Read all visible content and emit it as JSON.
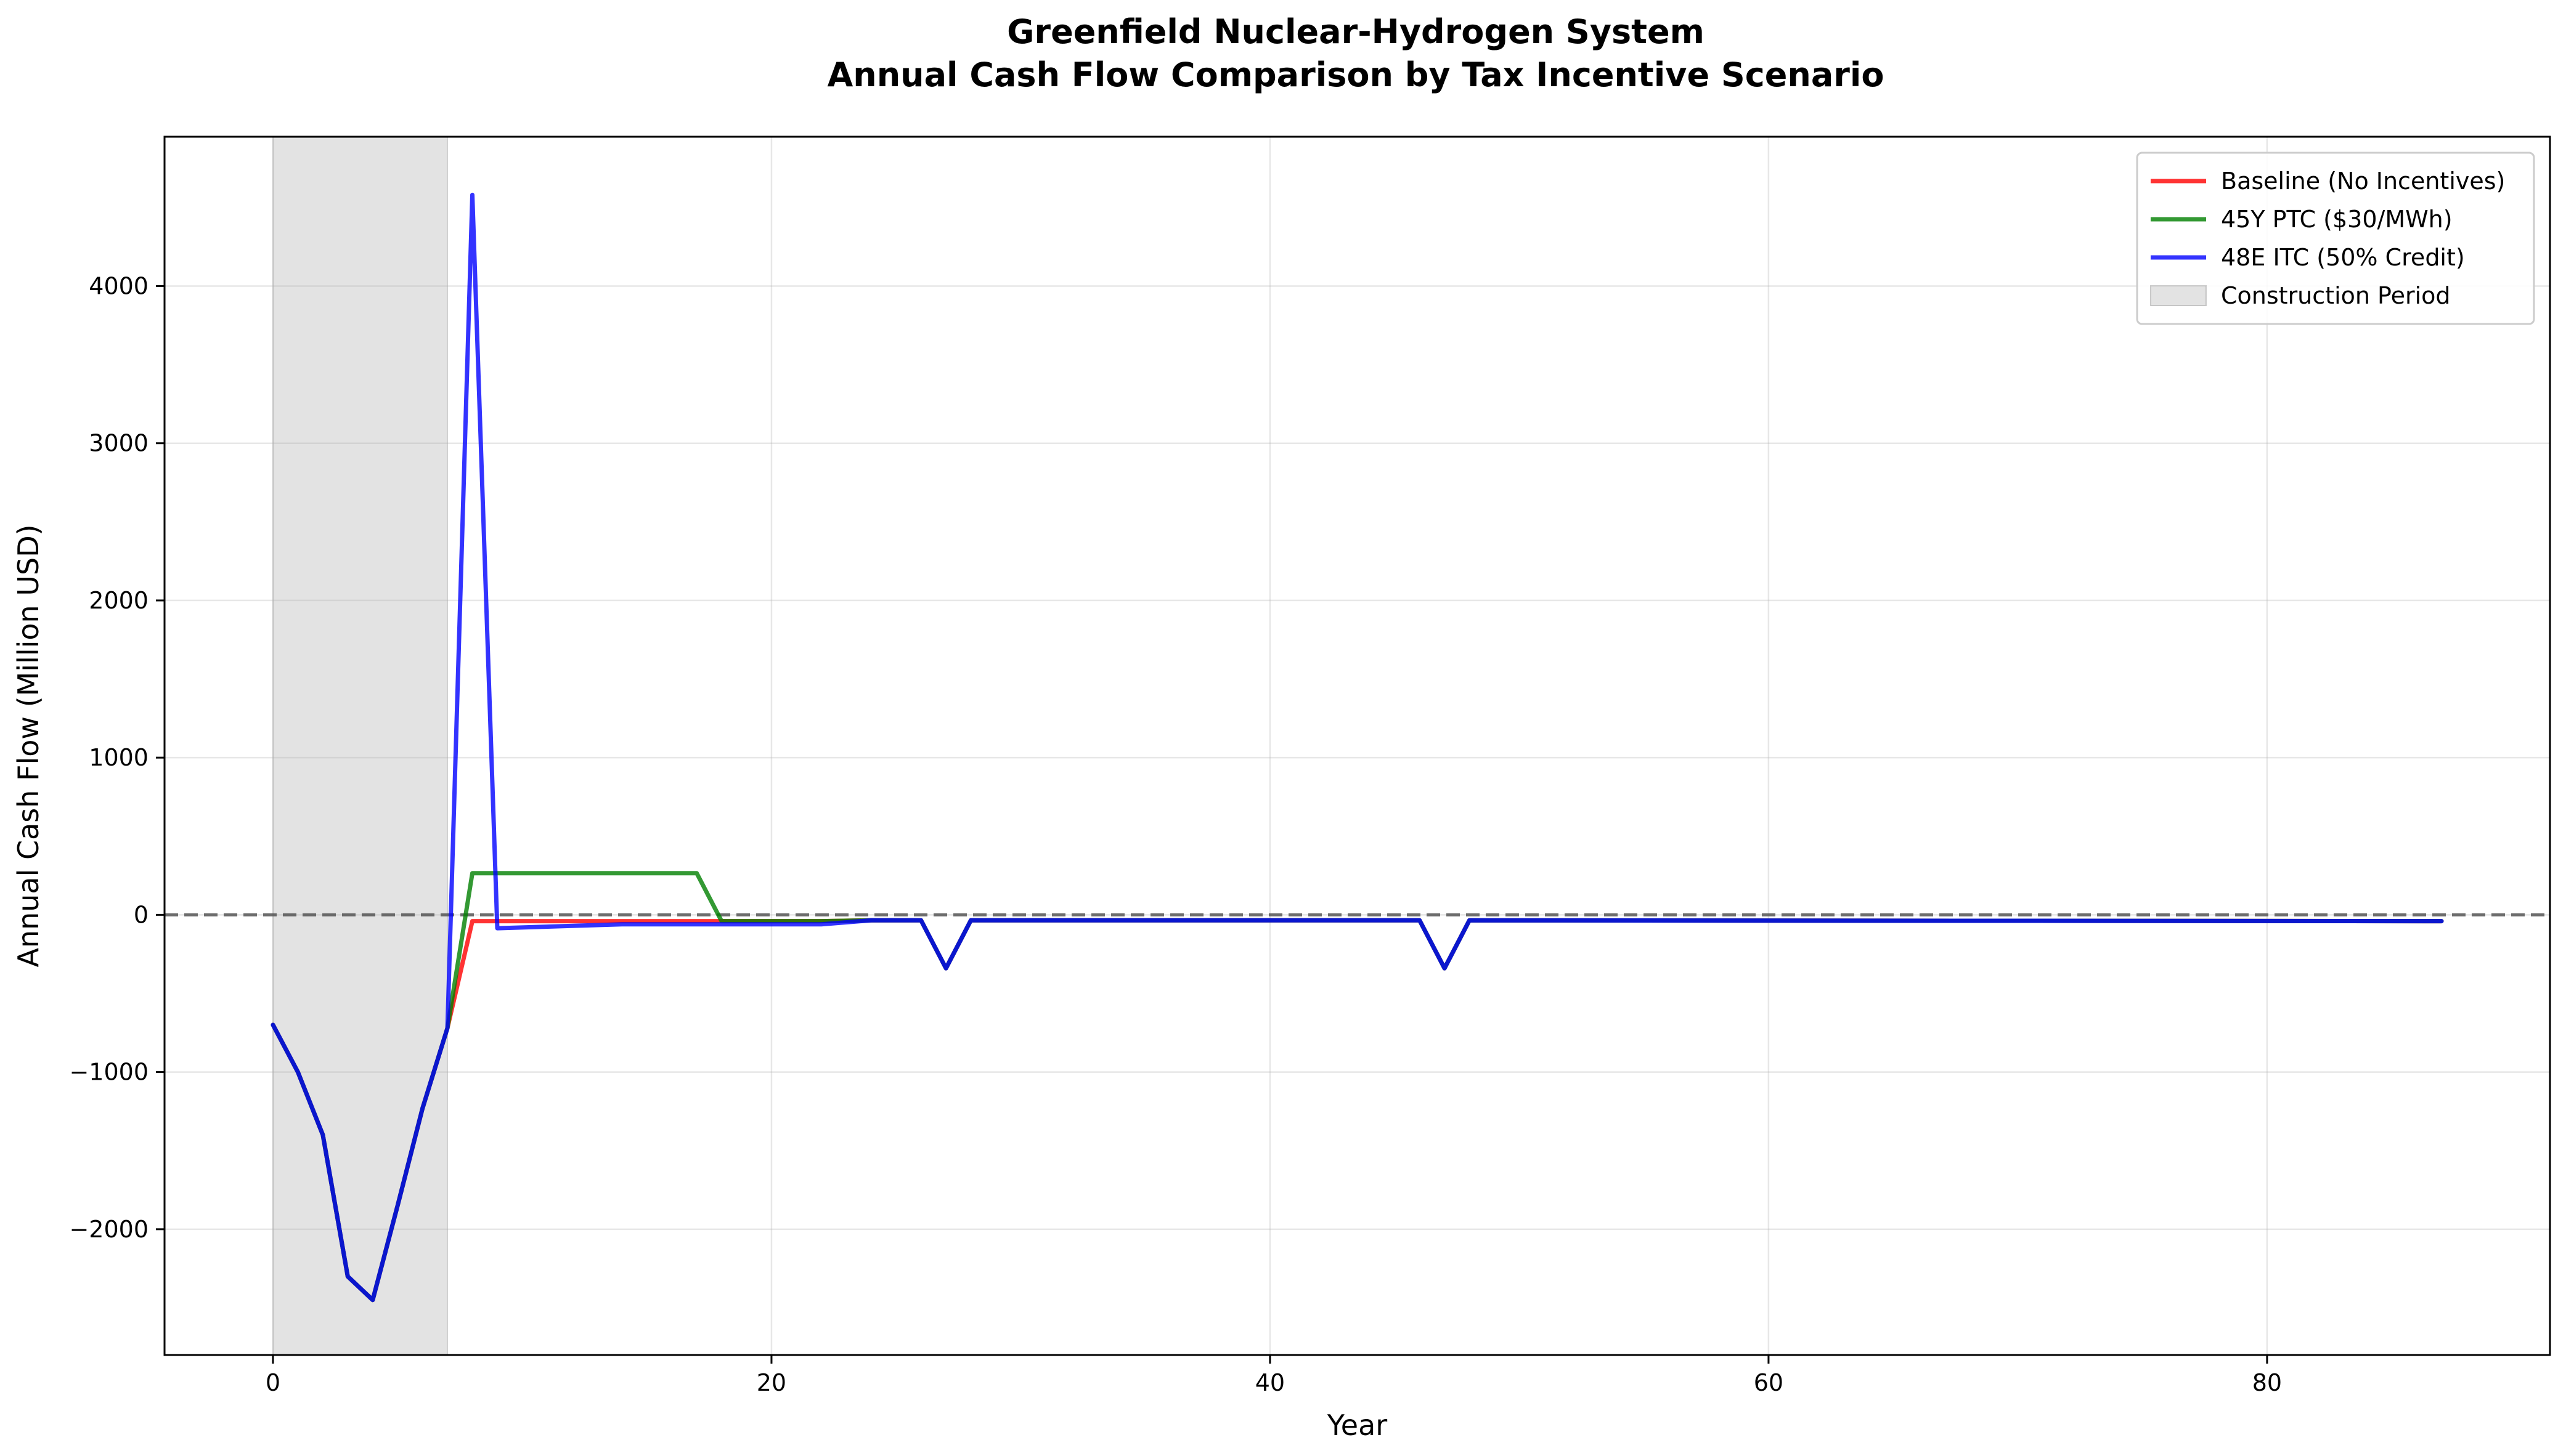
{
  "chart_data": {
    "type": "line",
    "title_line1": "Greenfield Nuclear-Hydrogen System",
    "title_line2": "Annual Cash Flow Comparison by Tax Incentive Scenario",
    "xlabel": "Year",
    "ylabel": "Annual Cash Flow (Million USD)",
    "xlim": [
      -4.35,
      91.35
    ],
    "ylim": [
      -2800,
      4950
    ],
    "xticks": [
      0,
      20,
      40,
      60,
      80
    ],
    "yticks": [
      -2000,
      -1000,
      0,
      1000,
      2000,
      3000,
      4000
    ],
    "ytick_labels": [
      "−2000",
      "−1000",
      "0",
      "1000",
      "2000",
      "3000",
      "4000"
    ],
    "grid": true,
    "legend_position": "top-right",
    "reference_line": {
      "y": 0,
      "style": "dashed",
      "color": "#555555"
    },
    "shaded_region": {
      "label": "Construction Period",
      "x_start": 0,
      "x_end": 7,
      "color": "#cccccc"
    },
    "series": [
      {
        "name": "Baseline (No Incentives)",
        "color": "#ff0000",
        "points": [
          [
            0,
            -700
          ],
          [
            1,
            -1000
          ],
          [
            2,
            -1400
          ],
          [
            3,
            -2300
          ],
          [
            4,
            -2450
          ],
          [
            5,
            -1850
          ],
          [
            6,
            -1230
          ],
          [
            7,
            -720
          ],
          [
            8,
            -40
          ],
          [
            22,
            -40
          ],
          [
            24,
            -35
          ],
          [
            26,
            -35
          ],
          [
            27,
            -340
          ],
          [
            28,
            -35
          ],
          [
            46,
            -35
          ],
          [
            47,
            -340
          ],
          [
            48,
            -35
          ],
          [
            87,
            -40
          ]
        ]
      },
      {
        "name": "45Y PTC ($30/MWh)",
        "color": "#008000",
        "points": [
          [
            0,
            -700
          ],
          [
            1,
            -1000
          ],
          [
            2,
            -1400
          ],
          [
            3,
            -2300
          ],
          [
            4,
            -2450
          ],
          [
            5,
            -1850
          ],
          [
            6,
            -1230
          ],
          [
            7,
            -720
          ],
          [
            8,
            265
          ],
          [
            17,
            265
          ],
          [
            18,
            -40
          ],
          [
            22,
            -40
          ],
          [
            24,
            -35
          ],
          [
            26,
            -35
          ],
          [
            27,
            -340
          ],
          [
            28,
            -35
          ],
          [
            46,
            -35
          ],
          [
            47,
            -340
          ],
          [
            48,
            -35
          ],
          [
            87,
            -40
          ]
        ]
      },
      {
        "name": "48E ITC (50% Credit)",
        "color": "#0000ff",
        "points": [
          [
            0,
            -700
          ],
          [
            1,
            -1000
          ],
          [
            2,
            -1400
          ],
          [
            3,
            -2300
          ],
          [
            4,
            -2450
          ],
          [
            5,
            -1850
          ],
          [
            6,
            -1230
          ],
          [
            7,
            -720
          ],
          [
            8,
            4580
          ],
          [
            9,
            -85
          ],
          [
            14,
            -60
          ],
          [
            22,
            -60
          ],
          [
            24,
            -35
          ],
          [
            26,
            -35
          ],
          [
            27,
            -340
          ],
          [
            28,
            -35
          ],
          [
            46,
            -35
          ],
          [
            47,
            -340
          ],
          [
            48,
            -35
          ],
          [
            87,
            -40
          ]
        ]
      }
    ]
  }
}
